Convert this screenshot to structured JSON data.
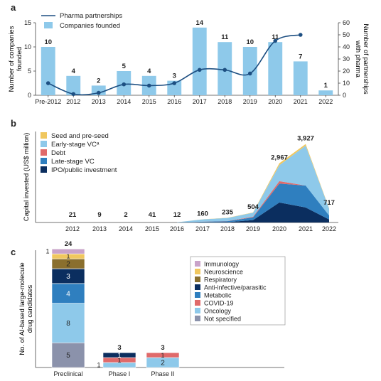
{
  "chart_data": [
    {
      "panel": "a",
      "type": "bar",
      "categories": [
        "Pre-2012",
        "2012",
        "2013",
        "2014",
        "2015",
        "2016",
        "2017",
        "2018",
        "2019",
        "2020",
        "2021",
        "2022"
      ],
      "ylabel_left": "Number of companies founded",
      "ylabel_right": "Number of partnerships with pharma",
      "ylim_left": [
        0,
        15
      ],
      "yticks_left": [
        "0",
        "5",
        "10",
        "15"
      ],
      "ylim_right": [
        0,
        60
      ],
      "yticks_right": [
        "0",
        "10",
        "20",
        "30",
        "40",
        "50",
        "60"
      ],
      "legend": [
        "Pharma partnerships",
        "Companies founded"
      ],
      "legend_position": "top-left",
      "series": [
        {
          "name": "Companies founded",
          "kind": "bar",
          "values": [
            10,
            4,
            2,
            5,
            4,
            3,
            14,
            11,
            10,
            11,
            7,
            1
          ]
        },
        {
          "name": "Pharma partnerships",
          "kind": "line",
          "axis": "right",
          "values": [
            10,
            1,
            2,
            9,
            8,
            10,
            21,
            21,
            18,
            45,
            50,
            null
          ]
        }
      ],
      "colors": {
        "bar": "#8ec9ea",
        "line": "#1d4f82"
      }
    },
    {
      "panel": "b",
      "type": "area",
      "categories": [
        "2012",
        "2013",
        "2014",
        "2015",
        "2016",
        "2017",
        "2018",
        "2019",
        "2020",
        "2021",
        "2022"
      ],
      "ylabel": "Capital invested (US$ million)",
      "totals": [
        "21",
        "9",
        "2",
        "41",
        "12",
        "160",
        "235",
        "504",
        "2,967",
        "3,927",
        "717"
      ],
      "legend": [
        "Seed and pre-seed",
        "Early-stage VCᵃ",
        "Debt",
        "Late-stage VC",
        "IPO/public investment"
      ],
      "legend_position": "top-left",
      "series": [
        {
          "name": "IPO/public investment",
          "values": [
            0,
            0,
            0,
            0,
            0,
            10,
            20,
            120,
            1000,
            750,
            150
          ]
        },
        {
          "name": "Late-stage VC",
          "values": [
            0,
            0,
            0,
            0,
            0,
            30,
            45,
            140,
            950,
            1100,
            200
          ]
        },
        {
          "name": "Debt",
          "values": [
            0,
            0,
            0,
            0,
            0,
            5,
            10,
            30,
            120,
            0,
            0
          ]
        },
        {
          "name": "Early-stage VCᵃ",
          "values": [
            21,
            9,
            2,
            41,
            12,
            110,
            150,
            200,
            800,
            2000,
            350
          ]
        },
        {
          "name": "Seed and pre-seed",
          "values": [
            0,
            0,
            0,
            0,
            0,
            5,
            10,
            14,
            97,
            77,
            17
          ]
        }
      ],
      "colors": {
        "seed": "#f0c75e",
        "early": "#8ec9ea",
        "debt": "#e06a6a",
        "late": "#2f7fbf",
        "ipo": "#0b2e5f"
      }
    },
    {
      "panel": "c",
      "type": "bar",
      "stacked": true,
      "categories": [
        "Preclinical",
        "Phase I",
        "Phase II"
      ],
      "ylabel": "No. of AI-based large-molecule drug candidates",
      "totals": [
        "24",
        "3",
        "3"
      ],
      "legend": [
        "Immunology",
        "Neuroscience",
        "Respiratory",
        "Anti-infective/parasitic",
        "Metabolic",
        "COVID-19",
        "Oncology",
        "Not specified"
      ],
      "legend_position": "right",
      "series": [
        {
          "name": "Not specified",
          "values": [
            5,
            0,
            0
          ]
        },
        {
          "name": "Oncology",
          "values": [
            8,
            1,
            2
          ]
        },
        {
          "name": "COVID-19",
          "values": [
            0,
            1,
            1
          ]
        },
        {
          "name": "Metabolic",
          "values": [
            4,
            0,
            0
          ]
        },
        {
          "name": "Anti-infective/parasitic",
          "values": [
            3,
            1,
            0
          ]
        },
        {
          "name": "Respiratory",
          "values": [
            2,
            0,
            0
          ]
        },
        {
          "name": "Neuroscience",
          "values": [
            1,
            0,
            0
          ]
        },
        {
          "name": "Immunology",
          "values": [
            1,
            0,
            0
          ]
        }
      ],
      "colors": [
        "#8b92ab",
        "#8ec9ea",
        "#e06a6a",
        "#2f7fbf",
        "#0b2e5f",
        "#8a6f2e",
        "#f0c75e",
        "#c9a3c9"
      ]
    }
  ],
  "panel_labels": {
    "a": "a",
    "b": "b",
    "c": "c"
  },
  "c_labels": {
    "preclinical": [
      "5",
      "8",
      "4",
      "3",
      "2",
      "1",
      "1"
    ],
    "phase1": [
      "1",
      "1",
      "1"
    ],
    "phase2": [
      "2",
      "1"
    ]
  }
}
